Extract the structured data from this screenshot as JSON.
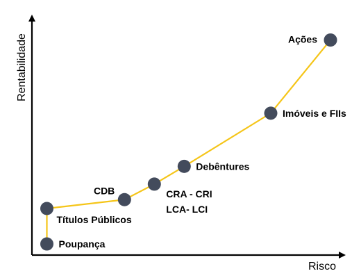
{
  "chart_data": {
    "type": "line",
    "title": "",
    "xlabel": "Risco",
    "ylabel": "Rentabilidade",
    "axes_tick_labels": false,
    "grid": false,
    "legend": false,
    "line_color": "#F5C518",
    "marker_color": "#434B5C",
    "axis_color": "#000000",
    "points": [
      {
        "label": "Poupança",
        "x": 0.05,
        "y": 0.05
      },
      {
        "label": "Títulos Públicos",
        "x": 0.05,
        "y": 0.21
      },
      {
        "label": "CDB",
        "x": 0.31,
        "y": 0.25
      },
      {
        "label": "CRA - CRI",
        "label2": "LCA- LCI",
        "x": 0.41,
        "y": 0.32
      },
      {
        "label": "Debêntures",
        "x": 0.51,
        "y": 0.4
      },
      {
        "label": "Imóveis e FIIs",
        "x": 0.8,
        "y": 0.64
      },
      {
        "label": "Ações",
        "x": 1.0,
        "y": 0.97
      }
    ]
  }
}
